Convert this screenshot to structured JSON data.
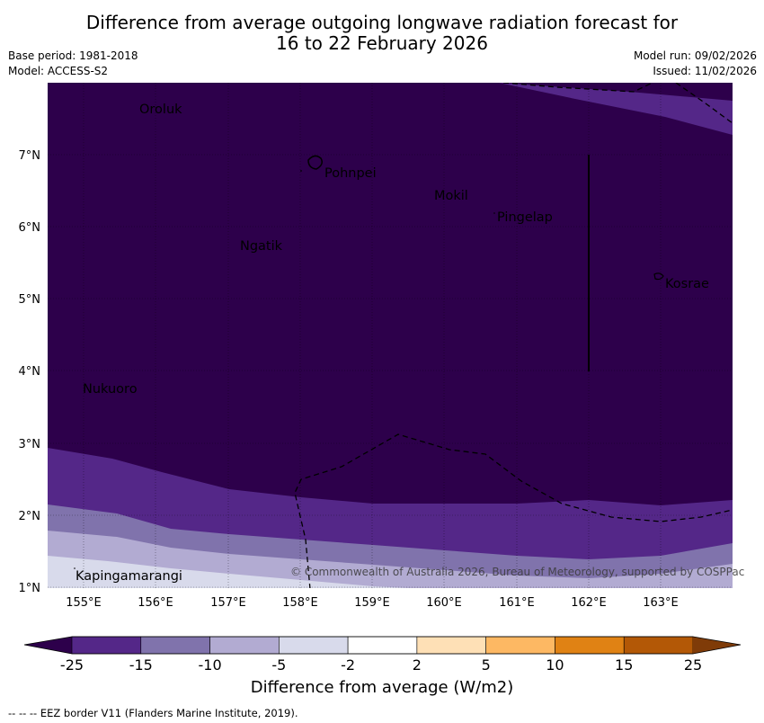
{
  "header": {
    "title_line1": "Difference from average outgoing longwave radiation forecast for",
    "title_line2": "16 to 22 February 2026",
    "base_period": "Base period: 1981-2018",
    "model": "Model: ACCESS-S2",
    "model_run": "Model run: 09/02/2026",
    "issued": "Issued: 11/02/2026"
  },
  "map": {
    "lat_labels": [
      "7°N",
      "6°N",
      "5°N",
      "4°N",
      "3°N",
      "2°N",
      "1°N"
    ],
    "lon_labels": [
      "155°E",
      "156°E",
      "157°E",
      "158°E",
      "159°E",
      "160°E",
      "161°E",
      "162°E",
      "163°E"
    ],
    "places": {
      "oroluk": "Oroluk",
      "pohnpei": "Pohnpei",
      "mokil": "Mokil",
      "pingelap": "Pingelap",
      "ngatik": "Ngatik",
      "kosrae": "Kosrae",
      "nukuoro": "Nukuoro",
      "kapingamarangi": "Kapingamarangi"
    },
    "copyright": "© Commonwealth of Australia 2026, Bureau of Meteorology, supported by COSPPac"
  },
  "colorbar": {
    "ticks": [
      "-25",
      "-15",
      "-10",
      "-5",
      "-2",
      "2",
      "5",
      "10",
      "15",
      "25"
    ],
    "colors": [
      "#542788",
      "#8073ac",
      "#b2abd2",
      "#d8daeb",
      "#ffffff",
      "#fee0b6",
      "#fdb863",
      "#e08214",
      "#b35806"
    ],
    "under_color": "#2d004b",
    "over_color": "#7f3b08",
    "label": "Difference from average (W/m2)"
  },
  "footer": {
    "eez_note": "--  --  -- EEZ border V11 (Flanders Marine Institute, 2019)."
  }
}
